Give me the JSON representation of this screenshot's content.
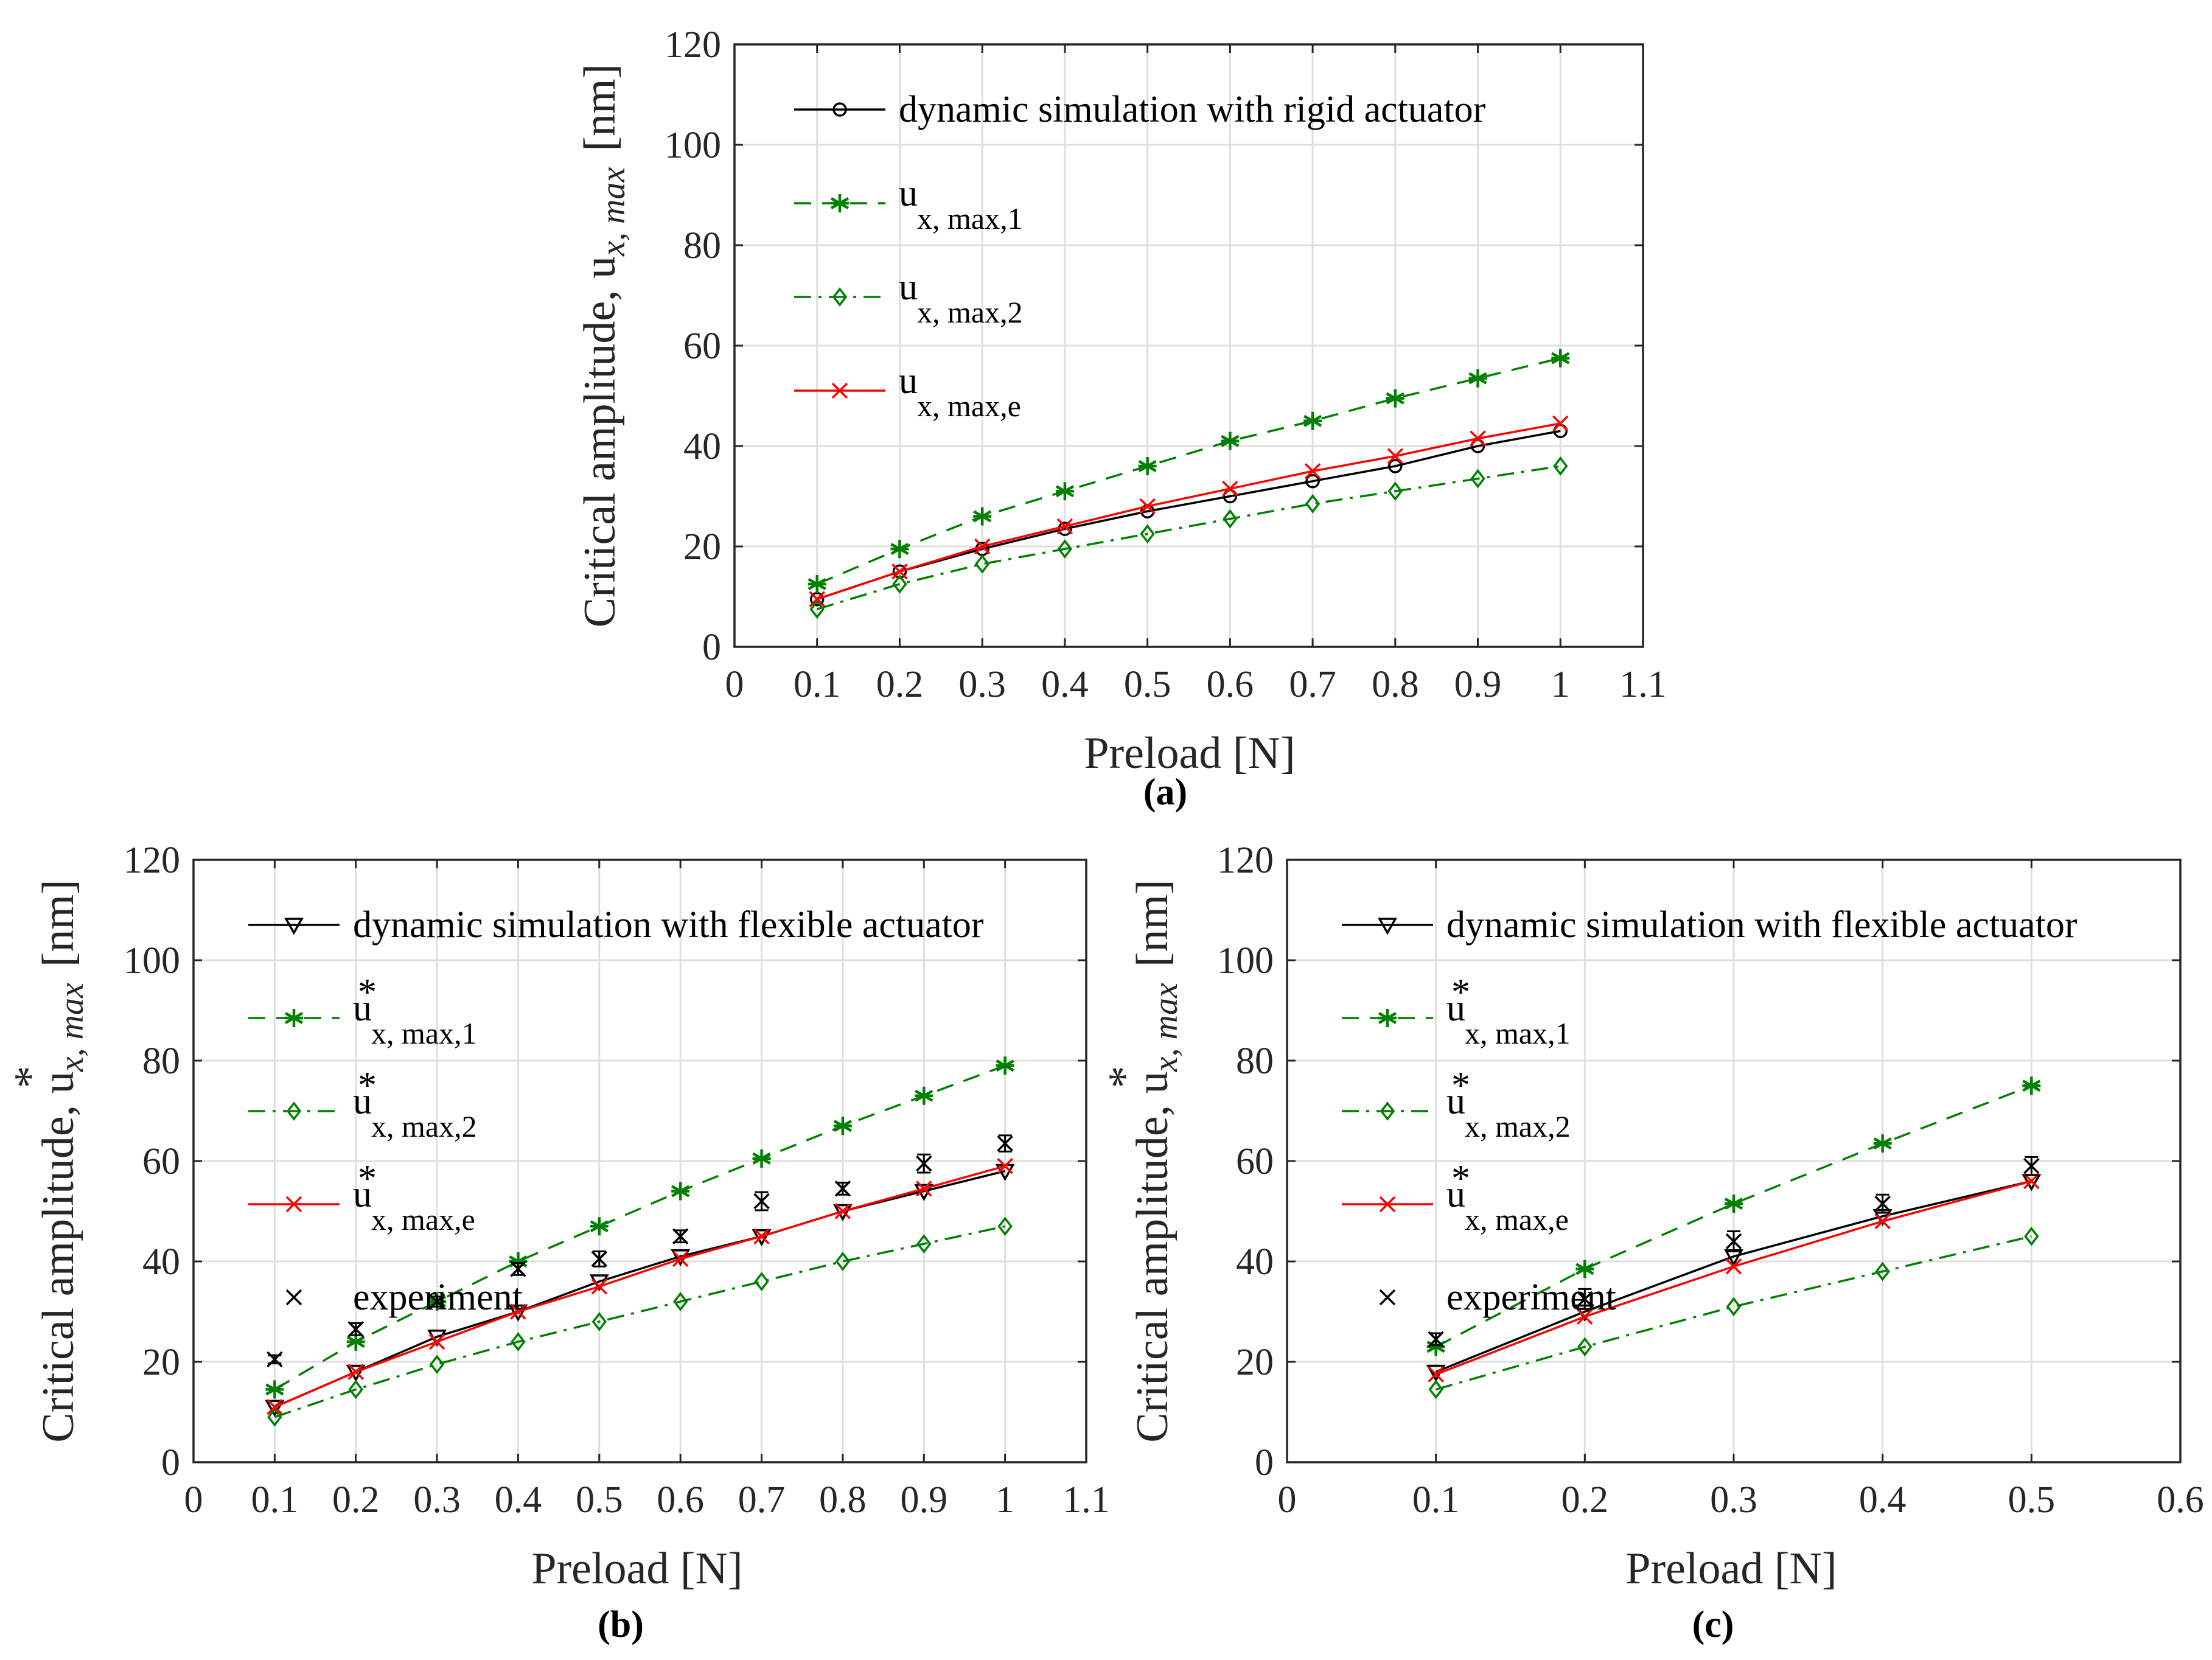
{
  "figure": {
    "colors": {
      "black": "#000000",
      "green": "#008000",
      "red": "#ff0000",
      "axis": "#262626",
      "grid": "#dfdfdf"
    }
  },
  "chart_data": [
    {
      "type": "line",
      "panel": "a",
      "caption": "(a)",
      "xlabel": "Preload [N]",
      "ylabel_parts": {
        "main": "Critical amplitude, u",
        "sub": "x, max",
        "unit": "[nm]",
        "star": ""
      },
      "xlim": [
        0,
        1.1
      ],
      "ylim": [
        0,
        120
      ],
      "xticks": [
        0,
        0.1,
        0.2,
        0.3,
        0.4,
        0.5,
        0.6,
        0.7,
        0.8,
        0.9,
        1,
        1.1
      ],
      "yticks": [
        0,
        20,
        40,
        60,
        80,
        100,
        120
      ],
      "legend_position": "top-left",
      "series": [
        {
          "name": "dynamic simulation with rigid actuator",
          "label_main": "dynamic simulation with rigid actuator",
          "label_sub": "",
          "label_star": "",
          "color": "#000000",
          "dash": "solid",
          "marker": "circle",
          "x": [
            0.1,
            0.2,
            0.3,
            0.4,
            0.5,
            0.6,
            0.7,
            0.8,
            0.9,
            1.0
          ],
          "values": [
            9.5,
            15,
            19.5,
            23.5,
            27,
            30,
            33,
            36,
            40,
            43
          ]
        },
        {
          "name": "u x, max,1",
          "label_main": "u",
          "label_sub": "x, max,1",
          "label_star": "",
          "color": "#008000",
          "dash": "dashed",
          "marker": "asterisk",
          "x": [
            0.1,
            0.2,
            0.3,
            0.4,
            0.5,
            0.6,
            0.7,
            0.8,
            0.9,
            1.0
          ],
          "values": [
            12.5,
            19.5,
            26,
            31,
            36,
            41,
            45,
            49.5,
            53.5,
            57.5
          ]
        },
        {
          "name": "u x, max,2",
          "label_main": "u",
          "label_sub": "x, max,2",
          "label_star": "",
          "color": "#008000",
          "dash": "dashdot",
          "marker": "diamond",
          "x": [
            0.1,
            0.2,
            0.3,
            0.4,
            0.5,
            0.6,
            0.7,
            0.8,
            0.9,
            1.0
          ],
          "values": [
            7.5,
            12.5,
            16.5,
            19.5,
            22.5,
            25.5,
            28.5,
            31,
            33.5,
            36
          ]
        },
        {
          "name": "u x, max,e",
          "label_main": "u",
          "label_sub": "x, max,e",
          "label_star": "",
          "color": "#ff0000",
          "dash": "solid",
          "marker": "x",
          "x": [
            0.1,
            0.2,
            0.3,
            0.4,
            0.5,
            0.6,
            0.7,
            0.8,
            0.9,
            1.0
          ],
          "values": [
            9.5,
            15,
            20,
            24,
            28,
            31.5,
            35,
            38,
            41.5,
            44.5
          ]
        }
      ]
    },
    {
      "type": "line",
      "panel": "b",
      "caption": "(b)",
      "xlabel": "Preload [N]",
      "ylabel_parts": {
        "main": "Critical amplitude, u",
        "sub": "x, max",
        "unit": "[nm]",
        "star": "*"
      },
      "xlim": [
        0,
        1.1
      ],
      "ylim": [
        0,
        120
      ],
      "xticks": [
        0,
        0.1,
        0.2,
        0.3,
        0.4,
        0.5,
        0.6,
        0.7,
        0.8,
        0.9,
        1,
        1.1
      ],
      "yticks": [
        0,
        20,
        40,
        60,
        80,
        100,
        120
      ],
      "legend_position": "top-left",
      "series": [
        {
          "name": "dynamic simulation with flexible actuator",
          "label_main": "dynamic simulation with flexible actuator",
          "label_sub": "",
          "label_star": "",
          "color": "#000000",
          "dash": "solid",
          "marker": "triangle-down",
          "x": [
            0.1,
            0.2,
            0.3,
            0.4,
            0.5,
            0.6,
            0.7,
            0.8,
            0.9,
            1.0
          ],
          "values": [
            11,
            18,
            25,
            30,
            36,
            41,
            45,
            50,
            54,
            58
          ]
        },
        {
          "name": "u* x, max,1",
          "label_main": "u",
          "label_sub": "x, max,1",
          "label_star": "*",
          "color": "#008000",
          "dash": "dashed",
          "marker": "asterisk",
          "x": [
            0.1,
            0.2,
            0.3,
            0.4,
            0.5,
            0.6,
            0.7,
            0.8,
            0.9,
            1.0
          ],
          "values": [
            14.5,
            24,
            32,
            40,
            47,
            54,
            60.5,
            67,
            73,
            79
          ]
        },
        {
          "name": "u* x, max,2",
          "label_main": "u",
          "label_sub": "x, max,2",
          "label_star": "*",
          "color": "#008000",
          "dash": "dashdot",
          "marker": "diamond",
          "x": [
            0.1,
            0.2,
            0.3,
            0.4,
            0.5,
            0.6,
            0.7,
            0.8,
            0.9,
            1.0
          ],
          "values": [
            9,
            14.5,
            19.5,
            24,
            28,
            32,
            36,
            40,
            43.5,
            47
          ]
        },
        {
          "name": "u* x, max,e",
          "label_main": "u",
          "label_sub": "x, max,e",
          "label_star": "*",
          "color": "#ff0000",
          "dash": "solid",
          "marker": "x",
          "x": [
            0.1,
            0.2,
            0.3,
            0.4,
            0.5,
            0.6,
            0.7,
            0.8,
            0.9,
            1.0
          ],
          "values": [
            11,
            18,
            24,
            30,
            35,
            40.5,
            45,
            50,
            54.5,
            59
          ]
        },
        {
          "name": "experiment",
          "label_main": "experiment",
          "label_sub": "",
          "label_star": "",
          "color": "#000000",
          "dash": "none",
          "marker": "x",
          "x": [
            0.1,
            0.2,
            0.3,
            0.4,
            0.5,
            0.6,
            0.7,
            0.8,
            0.9,
            1.0
          ],
          "values": [
            20.5,
            26.5,
            32,
            38.5,
            40.5,
            45,
            52,
            54.5,
            59.5,
            63.5
          ],
          "err": [
            0.8,
            1.2,
            1,
            1.2,
            1.5,
            1.2,
            1.8,
            1.2,
            1.8,
            1.6
          ]
        }
      ]
    },
    {
      "type": "line",
      "panel": "c",
      "caption": "(c)",
      "xlabel": "Preload [N]",
      "ylabel_parts": {
        "main": "Critical amplitude, u",
        "sub": "x, max",
        "unit": "[nm]",
        "star": "*"
      },
      "xlim": [
        0,
        0.6
      ],
      "ylim": [
        0,
        120
      ],
      "xticks": [
        0,
        0.1,
        0.2,
        0.3,
        0.4,
        0.5,
        0.6
      ],
      "yticks": [
        0,
        20,
        40,
        60,
        80,
        100,
        120
      ],
      "legend_position": "top-left",
      "series": [
        {
          "name": "dynamic simulation with flexible actuator",
          "label_main": "dynamic simulation with flexible actuator",
          "label_sub": "",
          "label_star": "",
          "color": "#000000",
          "dash": "solid",
          "marker": "triangle-down",
          "x": [
            0.1,
            0.2,
            0.3,
            0.4,
            0.5
          ],
          "values": [
            18,
            30,
            41,
            49,
            56
          ]
        },
        {
          "name": "u* x, max,1",
          "label_main": "u",
          "label_sub": "x, max,1",
          "label_star": "*",
          "color": "#008000",
          "dash": "dashed",
          "marker": "asterisk",
          "x": [
            0.1,
            0.2,
            0.3,
            0.4,
            0.5
          ],
          "values": [
            23,
            38.5,
            51.5,
            63.5,
            75
          ]
        },
        {
          "name": "u* x, max,2",
          "label_main": "u",
          "label_sub": "x, max,2",
          "label_star": "*",
          "color": "#008000",
          "dash": "dashdot",
          "marker": "diamond",
          "x": [
            0.1,
            0.2,
            0.3,
            0.4,
            0.5
          ],
          "values": [
            14.5,
            23,
            31,
            38,
            45
          ]
        },
        {
          "name": "u* x, max,e",
          "label_main": "u",
          "label_sub": "x, max,e",
          "label_star": "*",
          "color": "#ff0000",
          "dash": "solid",
          "marker": "x",
          "x": [
            0.1,
            0.2,
            0.3,
            0.4,
            0.5
          ],
          "values": [
            17.5,
            29,
            39,
            48,
            56
          ]
        },
        {
          "name": "experiment",
          "label_main": "experiment",
          "label_sub": "",
          "label_star": "",
          "color": "#000000",
          "dash": "none",
          "marker": "x",
          "x": [
            0.1,
            0.2,
            0.3,
            0.4,
            0.5
          ],
          "values": [
            24.5,
            32.5,
            44,
            51.5,
            59
          ],
          "err": [
            1.2,
            2,
            2,
            1.8,
            1.8
          ]
        }
      ]
    }
  ]
}
